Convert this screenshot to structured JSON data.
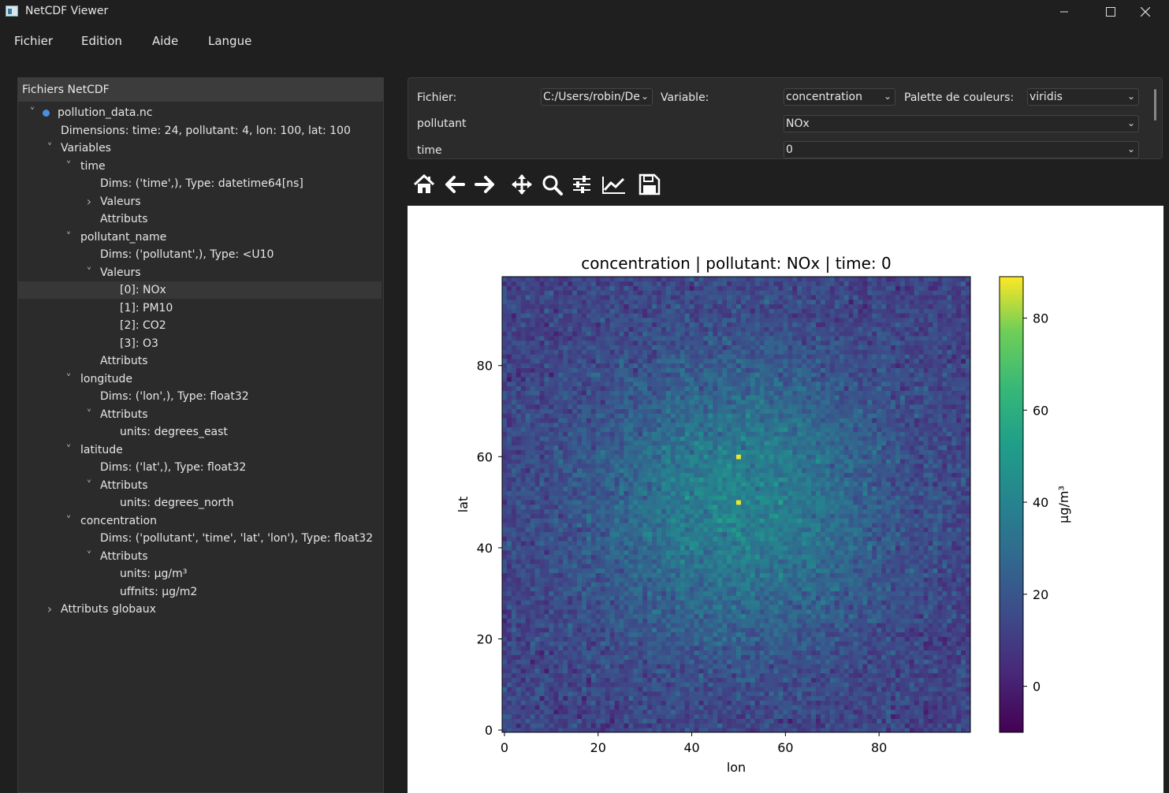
{
  "window": {
    "title": "NetCDF Viewer",
    "controls": [
      "minimize",
      "maximize",
      "close"
    ]
  },
  "menu": [
    "Fichier",
    "Edition",
    "Aide",
    "Langue"
  ],
  "tree": {
    "header": "Fichiers NetCDF",
    "rows": [
      {
        "text": "pollution_data.nc",
        "level": 0,
        "arrow": "open",
        "dot": true
      },
      {
        "text": "Dimensions: time: 24, pollutant: 4, lon: 100, lat: 100",
        "level": 1,
        "arrow": "none"
      },
      {
        "text": "Variables",
        "level": 1,
        "arrow": "open"
      },
      {
        "text": "time",
        "level": 2,
        "arrow": "open"
      },
      {
        "text": "Dims: ('time',), Type: datetime64[ns]",
        "level": 3,
        "arrow": "none"
      },
      {
        "text": "Valeurs",
        "level": 3,
        "arrow": "closed"
      },
      {
        "text": "Attributs",
        "level": 3,
        "arrow": "none"
      },
      {
        "text": "pollutant_name",
        "level": 2,
        "arrow": "open"
      },
      {
        "text": "Dims: ('pollutant',), Type: <U10",
        "level": 3,
        "arrow": "none"
      },
      {
        "text": "Valeurs",
        "level": 3,
        "arrow": "open"
      },
      {
        "text": "[0]: NOx",
        "level": 4,
        "arrow": "none",
        "selected": true
      },
      {
        "text": "[1]: PM10",
        "level": 4,
        "arrow": "none"
      },
      {
        "text": "[2]: CO2",
        "level": 4,
        "arrow": "none"
      },
      {
        "text": "[3]: O3",
        "level": 4,
        "arrow": "none"
      },
      {
        "text": "Attributs",
        "level": 3,
        "arrow": "none"
      },
      {
        "text": "longitude",
        "level": 2,
        "arrow": "open"
      },
      {
        "text": "Dims: ('lon',), Type: float32",
        "level": 3,
        "arrow": "none"
      },
      {
        "text": "Attributs",
        "level": 3,
        "arrow": "open"
      },
      {
        "text": "units: degrees_east",
        "level": 4,
        "arrow": "none"
      },
      {
        "text": "latitude",
        "level": 2,
        "arrow": "open"
      },
      {
        "text": "Dims: ('lat',), Type: float32",
        "level": 3,
        "arrow": "none"
      },
      {
        "text": "Attributs",
        "level": 3,
        "arrow": "open"
      },
      {
        "text": "units: degrees_north",
        "level": 4,
        "arrow": "none"
      },
      {
        "text": "concentration",
        "level": 2,
        "arrow": "open"
      },
      {
        "text": "Dims: ('pollutant', 'time', 'lat', 'lon'), Type: float32",
        "level": 3,
        "arrow": "none"
      },
      {
        "text": "Attributs",
        "level": 3,
        "arrow": "open"
      },
      {
        "text": "units: µg/m³",
        "level": 4,
        "arrow": "none"
      },
      {
        "text": "uffnits: µg/m2",
        "level": 4,
        "arrow": "none"
      },
      {
        "text": "Attributs globaux",
        "level": 1,
        "arrow": "closed"
      }
    ]
  },
  "controls": {
    "file_label": "Fichier:",
    "file_value": "C:/Users/robin/De",
    "variable_label": "Variable:",
    "variable_value": "concentration",
    "palette_label": "Palette de couleurs:",
    "palette_value": "viridis",
    "pollutant_label": "pollutant",
    "pollutant_value": "NOx",
    "time_label": "time",
    "time_value": "0"
  },
  "toolbar": [
    {
      "name": "home-icon"
    },
    {
      "name": "back-arrow-icon"
    },
    {
      "name": "forward-arrow-icon"
    },
    {
      "name": "pan-icon"
    },
    {
      "name": "zoom-icon"
    },
    {
      "name": "configure-subplots-icon"
    },
    {
      "name": "edit-axis-icon"
    },
    {
      "name": "save-icon"
    }
  ],
  "chart_data": {
    "type": "heatmap",
    "title": "concentration | pollutant: NOx | time: 0",
    "xlabel": "lon",
    "ylabel": "lat",
    "xlim": [
      0,
      99
    ],
    "ylim": [
      0,
      99
    ],
    "xticks": [
      0,
      20,
      40,
      60,
      80
    ],
    "yticks": [
      0,
      20,
      40,
      60,
      80
    ],
    "grid_size": [
      100,
      100
    ],
    "colormap": "viridis",
    "colorbar": {
      "label": "µg/m³",
      "range": [
        -10,
        89
      ],
      "ticks": [
        0,
        20,
        40,
        60,
        80
      ]
    },
    "peak": {
      "lon": 50,
      "lat": 50,
      "value": 89
    },
    "grid": false
  }
}
